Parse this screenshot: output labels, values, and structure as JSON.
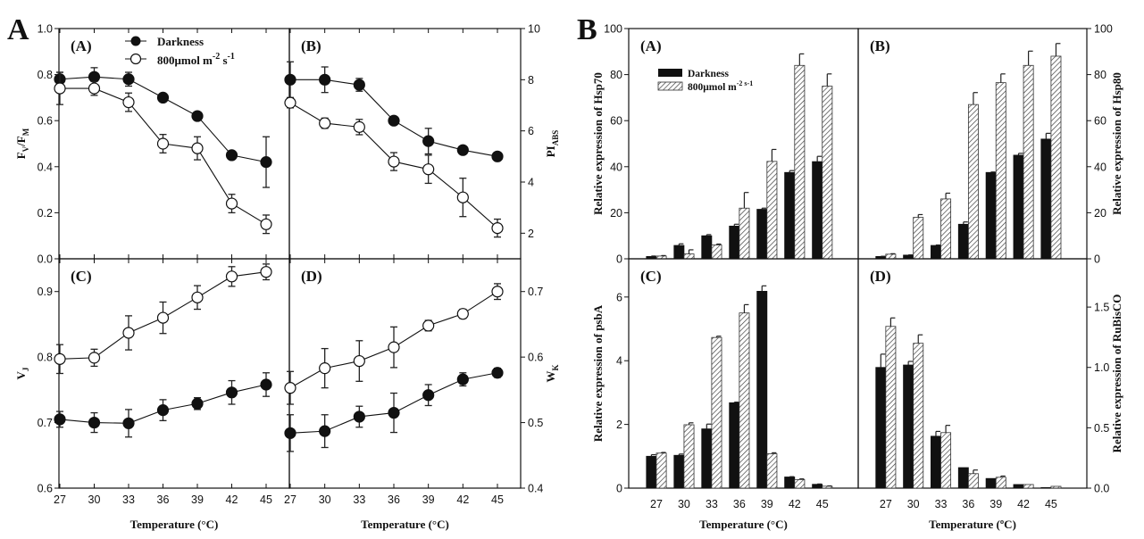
{
  "figure_letters": [
    "A",
    "B"
  ],
  "legend": {
    "darkness": "Darkness",
    "light": "800μmol m",
    "light_sup1": "-2",
    "light_mid": " s",
    "light_sup2": "-1",
    "light_compact_sup": "-2 s-1"
  },
  "x_axis_title": "Temperature (°C)",
  "x_axis_title_alt": "Temperature (ºC)",
  "chart_data": [
    {
      "id": "A-A",
      "figure": "A",
      "panel": "(A)",
      "type": "line",
      "categories": [
        "27",
        "30",
        "33",
        "36",
        "39",
        "42",
        "45"
      ],
      "ylabel": "FV/FM",
      "ylabel_main": "F",
      "ylabel_sub1": "V",
      "ylabel_sep": "/F",
      "ylabel_sub2": "M",
      "ylim": [
        0,
        1.0
      ],
      "yticks": [
        "0.0",
        "0.2",
        "0.4",
        "0.6",
        "0.8",
        "1.0"
      ],
      "ytick_values": [
        0,
        0.2,
        0.4,
        0.6,
        0.8,
        1.0
      ],
      "axis_side": "left",
      "series": [
        {
          "name": "Darkness",
          "values": [
            0.78,
            0.79,
            0.78,
            0.7,
            0.62,
            0.45,
            0.42
          ],
          "errors": [
            0.03,
            0.04,
            0.03,
            0.01,
            0.01,
            0.01,
            0.11
          ]
        },
        {
          "name": "800μmol m-2 s-1",
          "values": [
            0.74,
            0.74,
            0.68,
            0.5,
            0.48,
            0.24,
            0.15
          ],
          "errors": [
            0.07,
            0.03,
            0.04,
            0.04,
            0.05,
            0.04,
            0.04
          ]
        }
      ]
    },
    {
      "id": "A-B",
      "figure": "A",
      "panel": "(B)",
      "type": "line",
      "categories": [
        "27",
        "30",
        "33",
        "36",
        "39",
        "42",
        "45"
      ],
      "ylabel": "PIABS",
      "ylabel_main": "PI",
      "ylabel_sub1": "ABS",
      "ylim": [
        1,
        10
      ],
      "yticks": [
        "2",
        "4",
        "6",
        "8",
        "10"
      ],
      "ytick_values": [
        2,
        4,
        6,
        8,
        10
      ],
      "axis_side": "right",
      "series": [
        {
          "name": "Darkness",
          "values": [
            8.0,
            8.0,
            7.8,
            6.4,
            5.6,
            5.25,
            5.0
          ],
          "errors": [
            0.7,
            0.5,
            0.25,
            0.05,
            0.5,
            0.05,
            0.05
          ]
        },
        {
          "name": "800μmol m-2 s-1",
          "values": [
            7.1,
            6.3,
            6.15,
            4.8,
            4.5,
            3.4,
            2.2
          ],
          "errors": [
            0.2,
            0.2,
            0.3,
            0.35,
            0.55,
            0.75,
            0.35
          ]
        }
      ]
    },
    {
      "id": "A-C",
      "figure": "A",
      "panel": "(C)",
      "type": "line",
      "categories": [
        "27",
        "30",
        "33",
        "36",
        "39",
        "42",
        "45"
      ],
      "ylabel": "VJ",
      "ylabel_main": "V",
      "ylabel_sub1": "J",
      "ylim": [
        0.6,
        0.95
      ],
      "yticks": [
        "0.6",
        "0.7",
        "0.8",
        "0.9"
      ],
      "ytick_values": [
        0.6,
        0.7,
        0.8,
        0.9
      ],
      "axis_side": "left",
      "xlabel": "Temperature (°C)",
      "series": [
        {
          "name": "Darkness",
          "values": [
            0.705,
            0.7,
            0.699,
            0.719,
            0.729,
            0.746,
            0.758
          ],
          "errors": [
            0.012,
            0.015,
            0.021,
            0.016,
            0.009,
            0.018,
            0.018
          ]
        },
        {
          "name": "800μmol m-2 s-1",
          "values": [
            0.797,
            0.799,
            0.837,
            0.86,
            0.891,
            0.923,
            0.93
          ],
          "errors": [
            0.022,
            0.013,
            0.026,
            0.024,
            0.018,
            0.015,
            0.012
          ]
        }
      ]
    },
    {
      "id": "A-D",
      "figure": "A",
      "panel": "(D)",
      "type": "line",
      "categories": [
        "27",
        "30",
        "33",
        "36",
        "39",
        "42",
        "45"
      ],
      "ylabel": "WK",
      "ylabel_main": "W",
      "ylabel_sub1": "K",
      "ylim": [
        0.4,
        0.75
      ],
      "yticks": [
        "0.4",
        "0.5",
        "0.6",
        "0.7"
      ],
      "ytick_values": [
        0.4,
        0.5,
        0.6,
        0.7
      ],
      "axis_side": "right",
      "xlabel": "Temperature (°C)",
      "series": [
        {
          "name": "Darkness",
          "values": [
            0.484,
            0.487,
            0.509,
            0.515,
            0.542,
            0.566,
            0.576
          ],
          "errors": [
            0.028,
            0.025,
            0.016,
            0.03,
            0.016,
            0.01,
            0.007
          ]
        },
        {
          "name": "800μmol m-2 s-1",
          "values": [
            0.553,
            0.583,
            0.594,
            0.615,
            0.648,
            0.666,
            0.7
          ],
          "errors": [
            0.025,
            0.03,
            0.031,
            0.031,
            0.008,
            0.007,
            0.012
          ]
        }
      ]
    },
    {
      "id": "B-A",
      "figure": "B",
      "panel": "(A)",
      "type": "bar",
      "categories": [
        "27",
        "30",
        "33",
        "36",
        "39",
        "42",
        "45"
      ],
      "ylabel": "Relative expression of Hsp70",
      "ylim": [
        0,
        100
      ],
      "yticks": [
        "0",
        "20",
        "40",
        "60",
        "80",
        "100"
      ],
      "ytick_values": [
        0,
        20,
        40,
        60,
        80,
        100
      ],
      "axis_side": "left",
      "series": [
        {
          "name": "Darkness",
          "values": [
            1.0,
            5.8,
            10.0,
            14.2,
            21.5,
            37.5,
            42.2
          ],
          "errors": [
            0.2,
            0.7,
            0.5,
            0.8,
            0.5,
            0.8,
            2.3
          ]
        },
        {
          "name": "800μmol m-2 s-1",
          "values": [
            1.2,
            2.1,
            6.0,
            22.0,
            42.3,
            84.0,
            75.0
          ],
          "errors": [
            0.2,
            1.8,
            0.4,
            6.8,
            5.2,
            5.0,
            5.3
          ]
        }
      ]
    },
    {
      "id": "B-B",
      "figure": "B",
      "panel": "(B)",
      "type": "bar",
      "categories": [
        "27",
        "30",
        "33",
        "36",
        "39",
        "42",
        "45"
      ],
      "ylabel": "Relative expression of Hsp80",
      "ylim": [
        0,
        100
      ],
      "yticks": [
        "0",
        "20",
        "40",
        "60",
        "80",
        "100"
      ],
      "ytick_values": [
        0,
        20,
        40,
        60,
        80,
        100
      ],
      "axis_side": "right",
      "series": [
        {
          "name": "Darkness",
          "values": [
            1.0,
            1.6,
            5.8,
            15.0,
            37.5,
            45.0,
            52.0
          ],
          "errors": [
            0.1,
            0.1,
            0.2,
            1.0,
            0.2,
            0.8,
            2.5
          ]
        },
        {
          "name": "800μmol m-2 s-1",
          "values": [
            2.0,
            18.0,
            26.0,
            67.0,
            76.5,
            84.0,
            88.0
          ],
          "errors": [
            0.2,
            1.2,
            2.5,
            5.2,
            3.8,
            6.2,
            5.5
          ]
        }
      ]
    },
    {
      "id": "B-C",
      "figure": "B",
      "panel": "(C)",
      "type": "bar",
      "categories": [
        "27",
        "30",
        "33",
        "36",
        "39",
        "42",
        "45"
      ],
      "ylabel": "Relative expression of psbA",
      "ylim": [
        0,
        7.2
      ],
      "yticks": [
        "0",
        "2",
        "4",
        "6"
      ],
      "ytick_values": [
        0,
        2,
        4,
        6
      ],
      "axis_side": "left",
      "xlabel": "Temperature (°C)",
      "series": [
        {
          "name": "Darkness",
          "values": [
            1.0,
            1.03,
            1.86,
            2.68,
            6.18,
            0.35,
            0.12
          ],
          "errors": [
            0.05,
            0.04,
            0.15,
            0.02,
            0.17,
            0.01,
            0.01
          ]
        },
        {
          "name": "800μmol m-2 s-1",
          "values": [
            1.1,
            1.99,
            4.73,
            5.5,
            1.08,
            0.27,
            0.06
          ],
          "errors": [
            0.02,
            0.06,
            0.04,
            0.26,
            0.03,
            0.02,
            0.01
          ]
        }
      ]
    },
    {
      "id": "B-D",
      "figure": "B",
      "panel": "(D)",
      "type": "bar",
      "categories": [
        "27",
        "30",
        "33",
        "36",
        "39",
        "42",
        "45"
      ],
      "ylabel": "Relative expression of RuBisCO",
      "ylim": [
        0,
        1.9
      ],
      "yticks": [
        "0.0",
        "0.5",
        "1.0",
        "1.5"
      ],
      "ytick_values": [
        0,
        0.5,
        1.0,
        1.5
      ],
      "axis_side": "right",
      "xlabel": "Temperature (ºC)",
      "series": [
        {
          "name": "Darkness",
          "values": [
            1.0,
            1.02,
            0.43,
            0.17,
            0.08,
            0.03,
            0.005
          ],
          "errors": [
            0.11,
            0.03,
            0.04,
            0.0,
            0.0,
            0.0,
            0.0
          ]
        },
        {
          "name": "800μmol m-2 s-1",
          "values": [
            1.34,
            1.2,
            0.46,
            0.12,
            0.09,
            0.03,
            0.015
          ],
          "errors": [
            0.07,
            0.07,
            0.06,
            0.03,
            0.01,
            0.0,
            0.0
          ]
        }
      ]
    }
  ]
}
